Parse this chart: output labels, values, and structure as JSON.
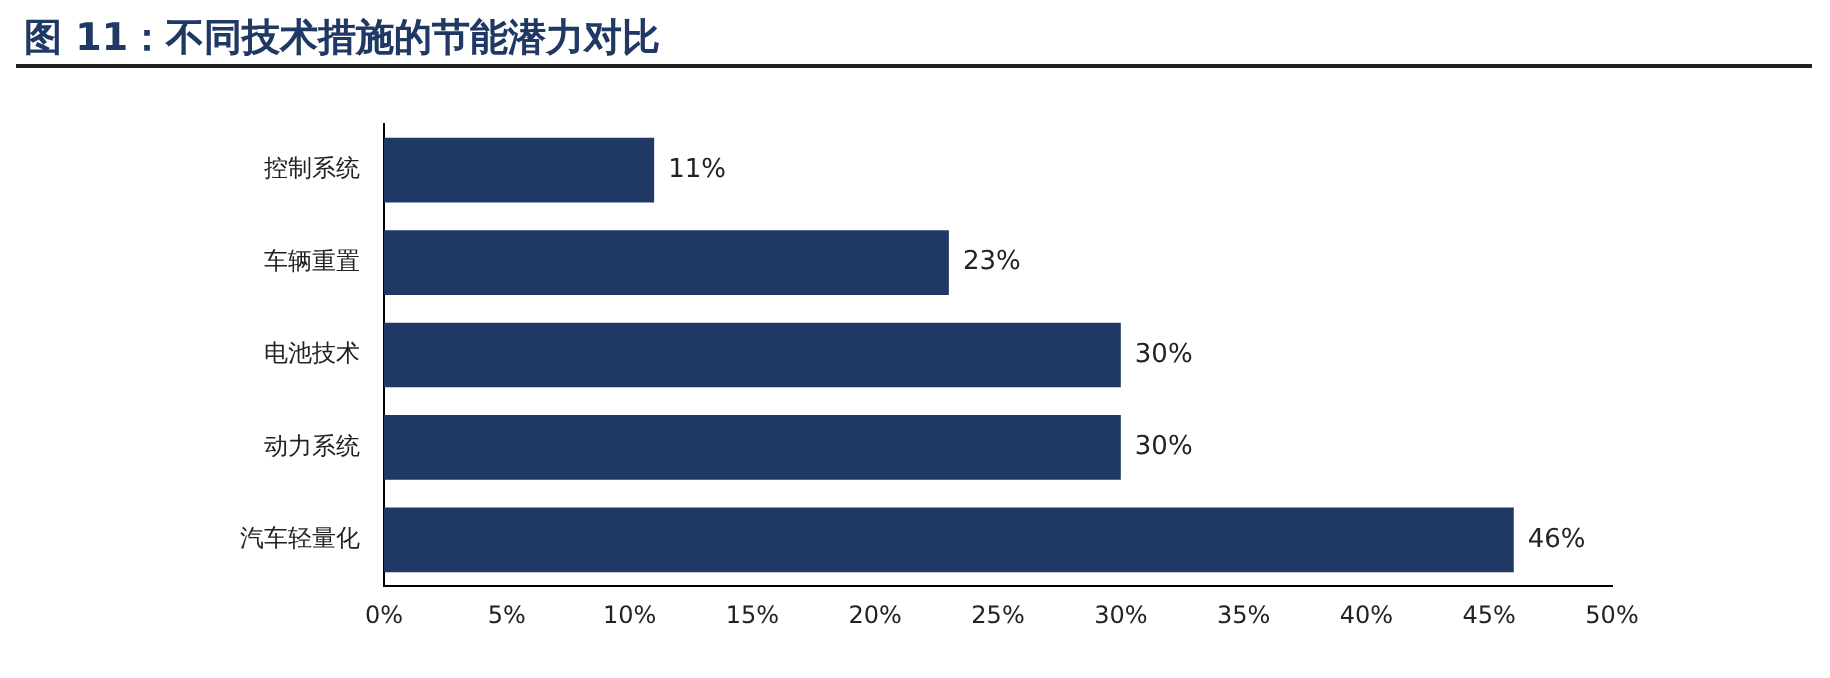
{
  "chart_data": {
    "type": "bar",
    "orientation": "horizontal",
    "title": "图 11：不同技术措施的节能潜力对比",
    "categories": [
      "控制系统",
      "车辆重置",
      "电池技术",
      "动力系统",
      "汽车轻量化"
    ],
    "values": [
      11,
      23,
      30,
      30,
      46
    ],
    "color": "#1f3864",
    "value_labels": [
      "11%",
      "23%",
      "30%",
      "30%",
      "46%"
    ],
    "xlim": [
      0,
      50
    ],
    "xticks": [
      {
        "value": 0,
        "label": "0%"
      },
      {
        "value": 5,
        "label": "5%"
      },
      {
        "value": 10,
        "label": "10%"
      },
      {
        "value": 15,
        "label": "15%"
      },
      {
        "value": 20,
        "label": "20%"
      },
      {
        "value": 25,
        "label": "25%"
      },
      {
        "value": 30,
        "label": "30%"
      },
      {
        "value": 35,
        "label": "35%"
      },
      {
        "value": 40,
        "label": "40%"
      },
      {
        "value": 45,
        "label": "45%"
      },
      {
        "value": 50,
        "label": "50%"
      }
    ],
    "grid": false,
    "legend": false
  }
}
